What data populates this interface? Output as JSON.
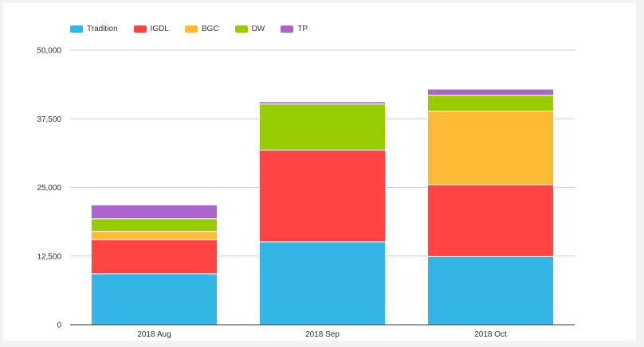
{
  "chart_data": {
    "type": "bar",
    "stacked": true,
    "title": "",
    "xlabel": "",
    "ylabel": "",
    "categories": [
      "2018 Aug",
      "2018 Sep",
      "2018 Oct"
    ],
    "ylim": [
      0,
      50000
    ],
    "yticks": [
      0,
      12500,
      25000,
      37500,
      50000
    ],
    "ytick_labels": [
      "0",
      "12,500",
      "25,000",
      "37,500",
      "50,000"
    ],
    "grid": true,
    "legend_position": "top-left",
    "series": [
      {
        "name": "Tradition",
        "color": "#33b5e5",
        "values": [
          9300,
          15100,
          12400
        ]
      },
      {
        "name": "IGDL",
        "color": "#ff4444",
        "values": [
          6200,
          16700,
          13100
        ]
      },
      {
        "name": "BGC",
        "color": "#ffbb33",
        "values": [
          1500,
          0,
          13400
        ]
      },
      {
        "name": "DW",
        "color": "#99cc00",
        "values": [
          2300,
          8400,
          2900
        ]
      },
      {
        "name": "TP",
        "color": "#aa66cc",
        "values": [
          2500,
          400,
          1100
        ]
      }
    ]
  }
}
